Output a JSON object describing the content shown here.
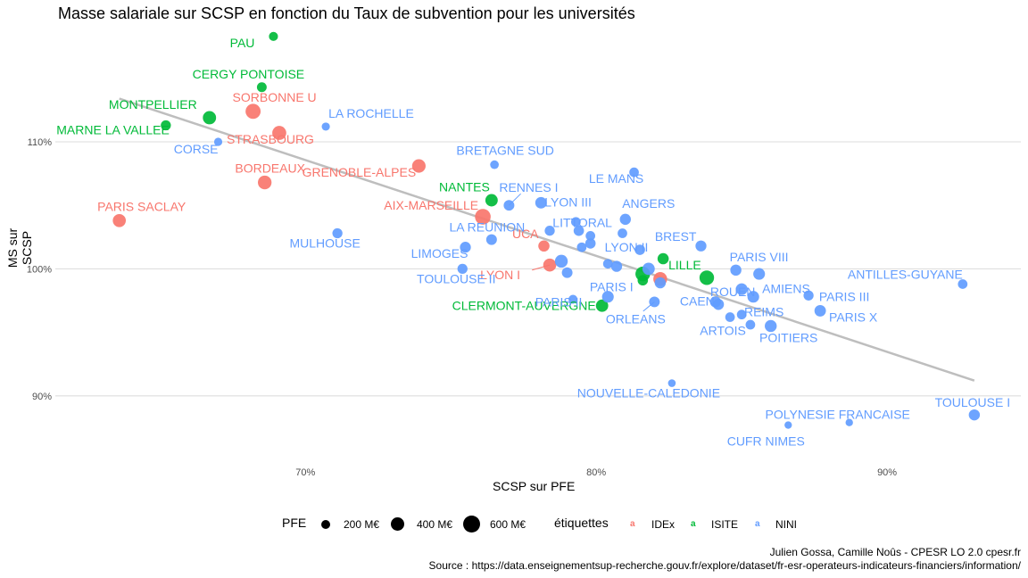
{
  "chart_data": {
    "type": "scatter",
    "title": "Masse salariale sur SCSP en fonction du Taux de subvention pour les universités",
    "xlabel": "SCSP sur PFE",
    "ylabel": "MS sur SCSP",
    "xlim": [
      61.4,
      94.6
    ],
    "ylim": [
      85.0,
      119.2
    ],
    "x_ticks": [
      70,
      80,
      90
    ],
    "x_tick_labels": [
      "70%",
      "80%",
      "90%"
    ],
    "y_ticks": [
      90,
      100,
      110
    ],
    "y_tick_labels": [
      "90%",
      "100%",
      "110%"
    ],
    "grid": true,
    "legend_position": "bottom",
    "colors": {
      "IDEx": "#F8766D",
      "ISITE": "#00BA38",
      "NINI": "#619CFF",
      "trend": "#BEBEBE"
    },
    "trend_line": {
      "x": [
        63.6,
        93.0
      ],
      "y": [
        113.4,
        91.2
      ]
    },
    "series": [
      {
        "name": "IDEx",
        "points": [
          {
            "label": "SORBONNE U",
            "x": 68.2,
            "y": 112.4,
            "pfe": 640
          },
          {
            "label": "STRASBOURG",
            "x": 69.1,
            "y": 110.7,
            "pfe": 520
          },
          {
            "label": "BORDEAUX",
            "x": 68.6,
            "y": 106.8,
            "pfe": 480
          },
          {
            "label": "GRENOBLE-ALPES",
            "x": 73.9,
            "y": 108.1,
            "pfe": 470
          },
          {
            "label": "PARIS SACLAY",
            "x": 63.6,
            "y": 103.8,
            "pfe": 420
          },
          {
            "label": "AIX-MARSEILLE",
            "x": 76.1,
            "y": 104.1,
            "pfe": 720
          },
          {
            "label": "UCA",
            "x": 78.2,
            "y": 101.8,
            "pfe": 260
          },
          {
            "label": "LYON I",
            "x": 78.4,
            "y": 100.3,
            "pfe": 420
          },
          {
            "label": "",
            "x": 82.2,
            "y": 99.2,
            "pfe": 500
          }
        ]
      },
      {
        "name": "ISITE",
        "points": [
          {
            "label": "PAU",
            "x": 68.9,
            "y": 118.3,
            "pfe": 120
          },
          {
            "label": "CERGY PONTOISE",
            "x": 68.5,
            "y": 114.3,
            "pfe": 160
          },
          {
            "label": "MONTPELLIER",
            "x": 66.7,
            "y": 111.9,
            "pfe": 440
          },
          {
            "label": "MARNE LA VALLEE",
            "x": 65.2,
            "y": 111.3,
            "pfe": 180
          },
          {
            "label": "NANTES",
            "x": 76.4,
            "y": 105.4,
            "pfe": 360
          },
          {
            "label": "LILLE",
            "x": 82.3,
            "y": 100.8,
            "pfe": 260
          },
          {
            "label": "",
            "x": 81.6,
            "y": 99.6,
            "pfe": 600
          },
          {
            "label": "",
            "x": 83.8,
            "y": 99.3,
            "pfe": 580
          },
          {
            "label": "",
            "x": 81.6,
            "y": 99.1,
            "pfe": 200
          },
          {
            "label": "CLERMONT-AUVERGNE",
            "x": 80.2,
            "y": 97.1,
            "pfe": 350
          }
        ]
      },
      {
        "name": "NINI",
        "points": [
          {
            "label": "LA ROCHELLE",
            "x": 70.7,
            "y": 111.2,
            "pfe": 80
          },
          {
            "label": "CORSE",
            "x": 67.0,
            "y": 110.0,
            "pfe": 80
          },
          {
            "label": "BRETAGNE SUD",
            "x": 76.5,
            "y": 108.2,
            "pfe": 100
          },
          {
            "label": "LE MANS",
            "x": 81.3,
            "y": 107.6,
            "pfe": 150
          },
          {
            "label": "RENNES I",
            "x": 77.0,
            "y": 105.0,
            "pfe": 220
          },
          {
            "label": "LYON III",
            "x": 78.1,
            "y": 105.2,
            "pfe": 280
          },
          {
            "label": "ANGERS",
            "x": 81.0,
            "y": 103.9,
            "pfe": 250
          },
          {
            "label": "LA REUNION",
            "x": 76.4,
            "y": 102.3,
            "pfe": 220
          },
          {
            "label": "",
            "x": 78.4,
            "y": 103.0,
            "pfe": 180
          },
          {
            "label": "LITTORAL",
            "x": 79.4,
            "y": 103.0,
            "pfe": 200
          },
          {
            "label": "",
            "x": 79.3,
            "y": 103.7,
            "pfe": 150
          },
          {
            "label": "",
            "x": 79.8,
            "y": 102.6,
            "pfe": 150
          },
          {
            "label": "",
            "x": 80.9,
            "y": 102.8,
            "pfe": 150
          },
          {
            "label": "",
            "x": 79.8,
            "y": 102.0,
            "pfe": 200
          },
          {
            "label": "",
            "x": 79.5,
            "y": 101.7,
            "pfe": 150
          },
          {
            "label": "BREST",
            "x": 83.6,
            "y": 101.8,
            "pfe": 240
          },
          {
            "label": "MULHOUSE",
            "x": 71.1,
            "y": 102.8,
            "pfe": 180
          },
          {
            "label": "LIMOGES",
            "x": 75.5,
            "y": 101.7,
            "pfe": 240
          },
          {
            "label": "TOULOUSE II",
            "x": 75.4,
            "y": 100.0,
            "pfe": 180
          },
          {
            "label": "LYON II",
            "x": 81.5,
            "y": 101.5,
            "pfe": 200
          },
          {
            "label": "",
            "x": 78.8,
            "y": 100.6,
            "pfe": 400
          },
          {
            "label": "",
            "x": 79.0,
            "y": 99.7,
            "pfe": 220
          },
          {
            "label": "",
            "x": 80.4,
            "y": 100.4,
            "pfe": 150
          },
          {
            "label": "",
            "x": 80.7,
            "y": 100.2,
            "pfe": 250
          },
          {
            "label": "PARIS II",
            "x": 79.2,
            "y": 97.6,
            "pfe": 120
          },
          {
            "label": "PARIS I",
            "x": 80.4,
            "y": 97.8,
            "pfe": 300
          },
          {
            "label": "ORLEANS",
            "x": 82.0,
            "y": 97.4,
            "pfe": 220
          },
          {
            "label": "",
            "x": 81.8,
            "y": 100.0,
            "pfe": 350
          },
          {
            "label": "",
            "x": 82.2,
            "y": 98.9,
            "pfe": 250
          },
          {
            "label": "PARIS VIII",
            "x": 84.8,
            "y": 99.9,
            "pfe": 250
          },
          {
            "label": "",
            "x": 85.6,
            "y": 99.6,
            "pfe": 300
          },
          {
            "label": "ROUEN",
            "x": 85.0,
            "y": 98.4,
            "pfe": 300
          },
          {
            "label": "AMIENS",
            "x": 85.4,
            "y": 97.8,
            "pfe": 300
          },
          {
            "label": "CAEN",
            "x": 84.1,
            "y": 97.4,
            "pfe": 250
          },
          {
            "label": "",
            "x": 84.2,
            "y": 97.2,
            "pfe": 250
          },
          {
            "label": "REIMS",
            "x": 85.0,
            "y": 96.4,
            "pfe": 150
          },
          {
            "label": "ARTOIS",
            "x": 84.6,
            "y": 96.2,
            "pfe": 150
          },
          {
            "label": "",
            "x": 85.3,
            "y": 95.6,
            "pfe": 150
          },
          {
            "label": "POITIERS",
            "x": 86.0,
            "y": 95.5,
            "pfe": 320
          },
          {
            "label": "PARIS III",
            "x": 87.3,
            "y": 97.9,
            "pfe": 180
          },
          {
            "label": "PARIS X",
            "x": 87.7,
            "y": 96.7,
            "pfe": 280
          },
          {
            "label": "ANTILLES-GUYANE",
            "x": 92.6,
            "y": 98.8,
            "pfe": 150
          },
          {
            "label": "NOUVELLE-CALEDONIE",
            "x": 82.6,
            "y": 91.0,
            "pfe": 60
          },
          {
            "label": "POLYNESIE FRANCAISE",
            "x": 88.7,
            "y": 87.9,
            "pfe": 50
          },
          {
            "label": "CUFR NIMES",
            "x": 86.6,
            "y": 87.7,
            "pfe": 50
          },
          {
            "label": "TOULOUSE I",
            "x": 93.0,
            "y": 88.5,
            "pfe": 250
          }
        ]
      }
    ],
    "legend": {
      "size_title": "PFE",
      "size_items": [
        {
          "label": "200 M€",
          "value": 200
        },
        {
          "label": "400 M€",
          "value": 400
        },
        {
          "label": "600 M€",
          "value": 600
        }
      ],
      "color_title": "étiquettes",
      "color_items": [
        {
          "label": "IDEx",
          "key": "a"
        },
        {
          "label": "ISITE",
          "key": "a"
        },
        {
          "label": "NINI",
          "key": "a"
        }
      ]
    },
    "caption_line1": "Julien Gossa, Camille Noûs - CPESR LO 2.0 cpesr.fr",
    "caption_line2": "Source : https://data.enseignementsup-recherche.gouv.fr/explore/dataset/fr-esr-operateurs-indicateurs-financiers/information/"
  }
}
